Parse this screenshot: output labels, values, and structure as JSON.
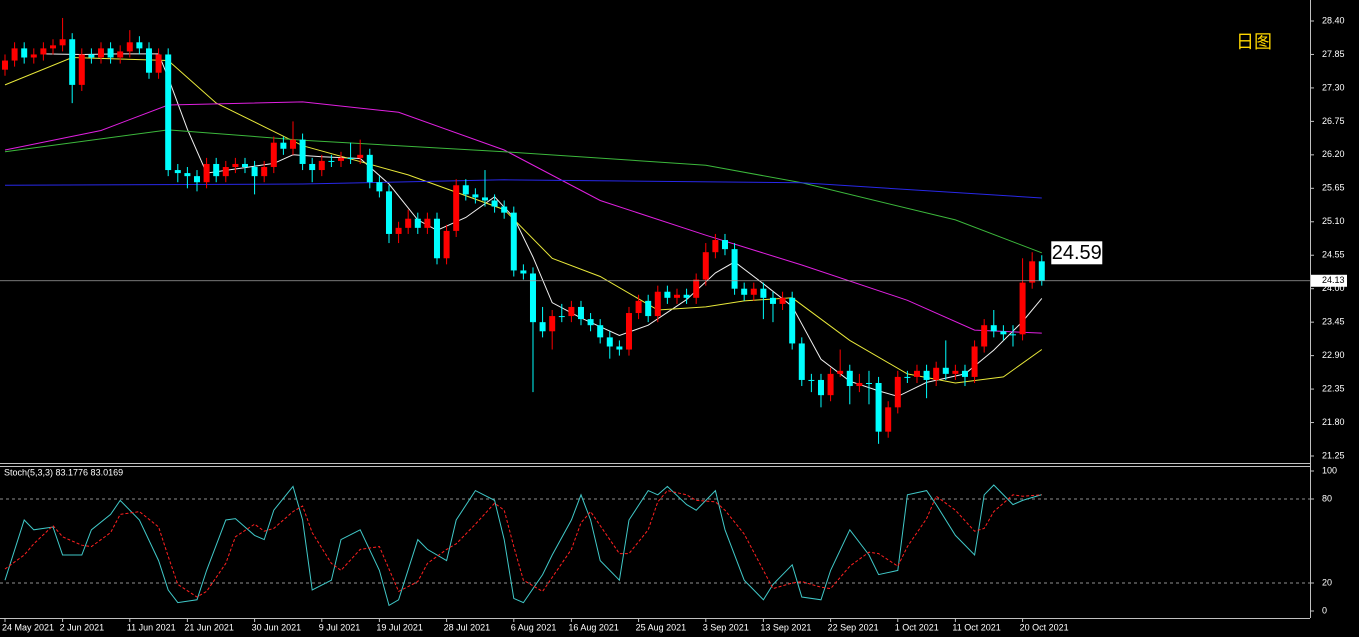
{
  "chart_data": [
    {
      "type": "candlestick",
      "annotation": "日图",
      "up_color": "#ff0000",
      "down_color": "#00ffff",
      "xlim": [
        -0.52,
        135.94
      ],
      "xticks": [
        {
          "value": 0,
          "label": "24 May 2021"
        },
        {
          "value": 6,
          "label": "2 Jun 2021"
        },
        {
          "value": 13,
          "label": "11 Jun 2021"
        },
        {
          "value": 19,
          "label": "21 Jun 2021"
        },
        {
          "value": 26,
          "label": "30 Jun 2021"
        },
        {
          "value": 33,
          "label": "9 Jul 2021"
        },
        {
          "value": 39,
          "label": "19 Jul 2021"
        },
        {
          "value": 46,
          "label": "28 Jul 2021"
        },
        {
          "value": 53,
          "label": "6 Aug 2021"
        },
        {
          "value": 59,
          "label": "16 Aug 2021"
        },
        {
          "value": 66,
          "label": "25 Aug 2021"
        },
        {
          "value": 73,
          "label": "3 Sep 2021"
        },
        {
          "value": 79,
          "label": "13 Sep 2021"
        },
        {
          "value": 86,
          "label": "22 Sep 2021"
        },
        {
          "value": 93,
          "label": "1 Oct 2021"
        },
        {
          "value": 99,
          "label": "11 Oct 2021"
        },
        {
          "value": 106,
          "label": "20 Oct 2021"
        }
      ],
      "ylim": [
        21.25,
        28.4
      ],
      "yticks": [
        {
          "value": 28.4,
          "label": "28.40"
        },
        {
          "value": 27.85,
          "label": "27.85"
        },
        {
          "value": 27.3,
          "label": "27.30"
        },
        {
          "value": 26.75,
          "label": "26.75"
        },
        {
          "value": 26.2,
          "label": "26.20"
        },
        {
          "value": 25.65,
          "label": "25.65"
        },
        {
          "value": 25.1,
          "label": "25.10"
        },
        {
          "value": 24.55,
          "label": "24.55"
        },
        {
          "value": 24.0,
          "label": "24.00"
        },
        {
          "value": 23.45,
          "label": "23.45"
        },
        {
          "value": 22.9,
          "label": "22.90"
        },
        {
          "value": 22.35,
          "label": "22.35"
        },
        {
          "value": 21.8,
          "label": "21.80"
        },
        {
          "value": 21.25,
          "label": "21.25"
        }
      ],
      "price_line": {
        "value": 24.13,
        "label": "24.13"
      },
      "ohlc": [
        [
          27.6,
          27.85,
          27.5,
          27.75
        ],
        [
          27.75,
          28.05,
          27.65,
          27.95
        ],
        [
          27.95,
          28.05,
          27.7,
          27.8
        ],
        [
          27.8,
          27.95,
          27.7,
          27.85
        ],
        [
          27.85,
          28.05,
          27.75,
          27.95
        ],
        [
          27.95,
          28.1,
          27.85,
          28.0
        ],
        [
          28.0,
          28.45,
          27.9,
          28.1
        ],
        [
          28.1,
          28.2,
          27.05,
          27.35
        ],
        [
          27.35,
          27.95,
          27.25,
          27.85
        ],
        [
          27.85,
          27.95,
          27.7,
          27.8
        ],
        [
          27.8,
          28.05,
          27.7,
          27.95
        ],
        [
          27.95,
          28.05,
          27.7,
          27.8
        ],
        [
          27.8,
          28.0,
          27.7,
          27.9
        ],
        [
          27.9,
          28.25,
          27.8,
          28.05
        ],
        [
          28.05,
          28.15,
          27.85,
          27.95
        ],
        [
          27.95,
          28.05,
          27.45,
          27.55
        ],
        [
          27.55,
          27.95,
          27.45,
          27.85
        ],
        [
          27.85,
          27.95,
          25.85,
          25.95
        ],
        [
          25.95,
          26.05,
          25.75,
          25.9
        ],
        [
          25.9,
          26.0,
          25.65,
          25.85
        ],
        [
          25.85,
          25.95,
          25.6,
          25.75
        ],
        [
          25.75,
          26.15,
          25.65,
          26.05
        ],
        [
          26.05,
          26.15,
          25.75,
          25.85
        ],
        [
          25.85,
          26.1,
          25.75,
          26.0
        ],
        [
          26.0,
          26.15,
          25.9,
          26.05
        ],
        [
          26.05,
          26.15,
          25.9,
          26.0
        ],
        [
          26.0,
          26.1,
          25.55,
          25.85
        ],
        [
          25.85,
          26.1,
          25.75,
          26.0
        ],
        [
          26.0,
          26.5,
          25.9,
          26.4
        ],
        [
          26.4,
          26.5,
          26.2,
          26.3
        ],
        [
          26.3,
          26.75,
          26.2,
          26.45
        ],
        [
          26.45,
          26.55,
          25.95,
          26.05
        ],
        [
          26.05,
          26.15,
          25.75,
          25.95
        ],
        [
          25.95,
          26.2,
          25.85,
          26.1
        ],
        [
          26.1,
          26.2,
          26.0,
          26.1
        ],
        [
          26.1,
          26.25,
          26.0,
          26.15
        ],
        [
          26.15,
          26.4,
          26.05,
          26.15
        ],
        [
          26.15,
          26.45,
          26.05,
          26.2
        ],
        [
          26.2,
          26.3,
          25.65,
          25.75
        ],
        [
          25.75,
          25.85,
          25.5,
          25.6
        ],
        [
          25.6,
          25.7,
          24.75,
          24.9
        ],
        [
          24.9,
          25.1,
          24.75,
          25.0
        ],
        [
          25.0,
          25.3,
          24.9,
          25.15
        ],
        [
          25.15,
          25.25,
          24.9,
          25.0
        ],
        [
          25.0,
          25.25,
          24.9,
          25.15
        ],
        [
          25.15,
          25.25,
          24.4,
          24.5
        ],
        [
          24.5,
          25.05,
          24.4,
          24.95
        ],
        [
          24.95,
          25.8,
          24.85,
          25.7
        ],
        [
          25.7,
          25.8,
          25.45,
          25.55
        ],
        [
          25.55,
          25.65,
          25.4,
          25.5
        ],
        [
          25.5,
          25.95,
          25.35,
          25.45
        ],
        [
          25.45,
          25.55,
          25.25,
          25.35
        ],
        [
          25.35,
          25.45,
          25.15,
          25.25
        ],
        [
          25.25,
          25.35,
          24.2,
          24.3
        ],
        [
          24.3,
          24.4,
          24.15,
          24.25
        ],
        [
          24.25,
          24.35,
          22.3,
          23.45
        ],
        [
          23.45,
          23.7,
          23.2,
          23.3
        ],
        [
          23.3,
          23.65,
          23.0,
          23.55
        ],
        [
          23.55,
          23.75,
          23.45,
          23.55
        ],
        [
          23.55,
          23.8,
          23.45,
          23.7
        ],
        [
          23.7,
          23.8,
          23.4,
          23.5
        ],
        [
          23.5,
          23.6,
          23.3,
          23.4
        ],
        [
          23.4,
          23.5,
          23.1,
          23.2
        ],
        [
          23.2,
          23.3,
          22.85,
          23.05
        ],
        [
          23.05,
          23.15,
          22.9,
          23.0
        ],
        [
          23.0,
          23.7,
          22.9,
          23.6
        ],
        [
          23.6,
          23.9,
          23.5,
          23.8
        ],
        [
          23.8,
          23.9,
          23.45,
          23.55
        ],
        [
          23.55,
          24.05,
          23.45,
          23.95
        ],
        [
          23.95,
          24.05,
          23.75,
          23.85
        ],
        [
          23.85,
          24.0,
          23.75,
          23.9
        ],
        [
          23.9,
          24.0,
          23.75,
          23.85
        ],
        [
          23.85,
          24.25,
          23.75,
          24.15
        ],
        [
          24.15,
          24.75,
          24.05,
          24.6
        ],
        [
          24.6,
          24.9,
          24.5,
          24.8
        ],
        [
          24.8,
          24.9,
          24.55,
          24.65
        ],
        [
          24.65,
          24.75,
          23.9,
          24.0
        ],
        [
          24.0,
          24.1,
          23.8,
          23.9
        ],
        [
          23.9,
          24.1,
          23.8,
          24.0
        ],
        [
          24.0,
          24.1,
          23.5,
          23.85
        ],
        [
          23.85,
          23.95,
          23.45,
          23.75
        ],
        [
          23.75,
          23.95,
          23.65,
          23.85
        ],
        [
          23.85,
          23.95,
          23.0,
          23.1
        ],
        [
          23.1,
          23.2,
          22.4,
          22.5
        ],
        [
          22.5,
          22.6,
          22.3,
          22.5
        ],
        [
          22.5,
          22.6,
          22.05,
          22.25
        ],
        [
          22.25,
          22.7,
          22.15,
          22.6
        ],
        [
          22.6,
          23.0,
          22.55,
          22.65
        ],
        [
          22.65,
          22.75,
          22.1,
          22.4
        ],
        [
          22.4,
          22.6,
          22.3,
          22.45
        ],
        [
          22.45,
          22.65,
          22.1,
          22.45
        ],
        [
          22.45,
          22.55,
          21.45,
          21.65
        ],
        [
          21.65,
          22.15,
          21.55,
          22.05
        ],
        [
          22.05,
          22.65,
          21.95,
          22.55
        ],
        [
          22.55,
          22.65,
          22.45,
          22.55
        ],
        [
          22.55,
          22.75,
          22.45,
          22.65
        ],
        [
          22.65,
          22.75,
          22.2,
          22.5
        ],
        [
          22.5,
          22.8,
          22.4,
          22.7
        ],
        [
          22.7,
          23.15,
          22.5,
          22.6
        ],
        [
          22.6,
          22.75,
          22.5,
          22.65
        ],
        [
          22.65,
          22.75,
          22.4,
          22.55
        ],
        [
          22.55,
          23.15,
          22.45,
          23.05
        ],
        [
          23.05,
          23.5,
          22.95,
          23.4
        ],
        [
          23.4,
          23.65,
          23.2,
          23.3
        ],
        [
          23.3,
          23.4,
          23.15,
          23.25
        ],
        [
          23.25,
          23.4,
          23.05,
          23.25
        ],
        [
          23.25,
          24.5,
          23.15,
          24.1
        ],
        [
          24.1,
          24.6,
          24.0,
          24.45
        ],
        [
          24.45,
          24.55,
          24.05,
          24.13
        ]
      ],
      "series": [
        {
          "color": "#f0f0f0",
          "x": [
            4,
            8,
            12,
            16,
            17,
            19,
            21,
            25,
            28,
            30,
            33,
            37,
            40,
            43,
            45,
            48,
            51,
            53,
            55,
            57,
            60,
            64,
            67,
            71,
            74,
            76,
            79,
            82,
            85,
            88,
            91,
            93,
            96,
            100,
            103,
            106,
            108
          ],
          "values": [
            27.86,
            27.85,
            27.86,
            27.86,
            27.47,
            26.62,
            25.9,
            25.99,
            26.06,
            26.2,
            26.17,
            26.14,
            25.72,
            25.13,
            24.96,
            25.17,
            25.51,
            25.17,
            24.52,
            23.77,
            23.52,
            23.23,
            23.4,
            23.82,
            24.26,
            24.44,
            24.08,
            23.71,
            22.84,
            22.48,
            22.32,
            22.23,
            22.46,
            22.6,
            22.99,
            23.46,
            23.84
          ]
        },
        {
          "color": "#e8e83a",
          "x": [
            0,
            7,
            17,
            22,
            31,
            42,
            52,
            57,
            62,
            68,
            73,
            77,
            82,
            88,
            94,
            99,
            104,
            108
          ],
          "values": [
            27.35,
            27.8,
            27.75,
            27.05,
            26.35,
            25.87,
            25.3,
            24.5,
            24.2,
            23.65,
            23.7,
            23.8,
            23.85,
            23.15,
            22.6,
            22.45,
            22.55,
            23.0
          ]
        },
        {
          "color": "#e020e0",
          "x": [
            0,
            10,
            17,
            31,
            41,
            52,
            62,
            73,
            83,
            94,
            101,
            108
          ],
          "values": [
            26.28,
            26.6,
            27.02,
            27.07,
            26.9,
            26.28,
            25.45,
            24.88,
            24.39,
            23.81,
            23.32,
            23.27
          ]
        },
        {
          "color": "#3cb83c",
          "x": [
            0,
            17,
            31,
            52,
            73,
            83,
            99,
            108
          ],
          "values": [
            26.25,
            26.61,
            26.44,
            26.25,
            26.03,
            25.74,
            25.13,
            24.59
          ],
          "end_label": "24.59"
        },
        {
          "color": "#2828e8",
          "x": [
            0,
            31,
            52,
            83,
            108
          ],
          "values": [
            25.7,
            25.72,
            25.79,
            25.74,
            25.49
          ]
        }
      ]
    },
    {
      "type": "stochastic",
      "title": "Stoch(5,3,3) 83.1776 83.0169",
      "xlim": [
        -0.52,
        135.94
      ],
      "ylim": [
        0,
        100
      ],
      "yticks": [
        0,
        20,
        80,
        100
      ],
      "levels": [
        20,
        80
      ],
      "x": [
        0,
        2,
        3,
        5,
        6,
        8,
        9,
        11,
        12,
        14,
        16,
        17,
        18,
        20,
        21,
        23,
        24,
        26,
        27,
        28,
        30,
        31,
        32,
        34,
        35,
        37,
        39,
        40,
        41,
        43,
        44,
        46,
        47,
        49,
        51,
        52,
        53,
        54,
        56,
        57,
        59,
        60,
        61,
        62,
        64,
        65,
        67,
        68,
        69,
        71,
        72,
        74,
        75,
        77,
        79,
        80,
        82,
        83,
        85,
        86,
        88,
        90,
        91,
        93,
        94,
        96,
        97,
        99,
        101,
        102,
        103,
        105,
        106,
        108
      ],
      "series": [
        {
          "color": "#40c8c8",
          "values": [
            22,
            65,
            58,
            60,
            40,
            40,
            58,
            69,
            79,
            65,
            36,
            15,
            6,
            8,
            29,
            65,
            66,
            54,
            51,
            72,
            89,
            65,
            15,
            22,
            51,
            58,
            29,
            4,
            8,
            51,
            44,
            36,
            65,
            86,
            79,
            51,
            9,
            6,
            26,
            40,
            65,
            83,
            65,
            36,
            22,
            65,
            86,
            83,
            89,
            76,
            72,
            86,
            58,
            22,
            8,
            19,
            33,
            10,
            8,
            29,
            58,
            40,
            26,
            29,
            83,
            86,
            76,
            54,
            40,
            83,
            90,
            76,
            79,
            83.1776
          ]
        },
        {
          "color": "#ff2020",
          "dashed": true,
          "values": [
            30,
            40,
            48,
            61,
            53,
            47,
            46,
            56,
            69,
            71,
            60,
            39,
            19,
            10,
            14,
            34,
            53,
            62,
            57,
            59,
            71,
            75,
            56,
            34,
            29,
            44,
            46,
            30,
            14,
            21,
            34,
            44,
            48,
            62,
            77,
            72,
            46,
            22,
            14,
            24,
            44,
            63,
            71,
            61,
            41,
            41,
            58,
            78,
            86,
            83,
            79,
            78,
            72,
            55,
            29,
            16,
            20,
            21,
            17,
            16,
            32,
            42,
            41,
            32,
            46,
            66,
            82,
            72,
            57,
            59,
            71,
            83,
            82,
            83.0169
          ]
        }
      ]
    }
  ]
}
